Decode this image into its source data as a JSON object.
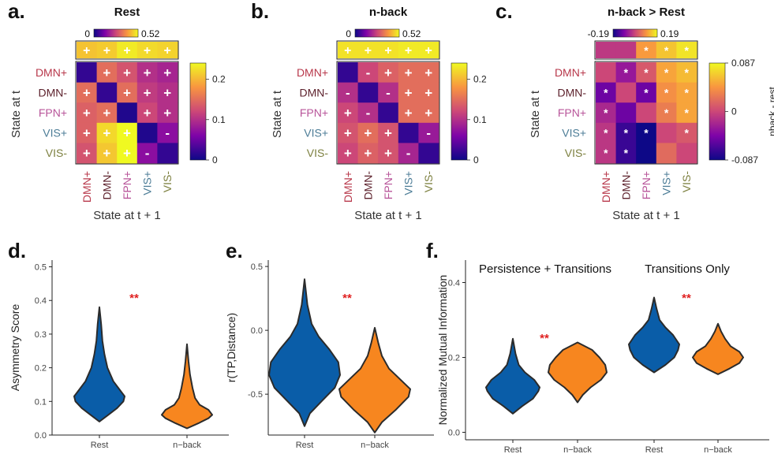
{
  "colors": {
    "blue": "#0a5da8",
    "orange": "#f7861f",
    "significance": "#e02020",
    "violin_edge": "#2b2b2b",
    "DMN+": "#b8384b",
    "DMN-": "#5b1f2a",
    "FPN+": "#b8559a",
    "VIS+": "#4d7d97",
    "VIS-": "#7d8040"
  },
  "chart_data": [
    {
      "type": "heatmap",
      "panel": "a.",
      "title": "Rest",
      "rows": [
        "DMN+",
        "DMN-",
        "FPN+",
        "VIS+",
        "VIS-"
      ],
      "cols": [
        "DMN+",
        "DMN-",
        "FPN+",
        "VIS+",
        "VIS-"
      ],
      "ylabel": "State at t",
      "xlabel": "State at t + 1",
      "values": [
        [
          0.02,
          0.15,
          0.13,
          0.1,
          0.09
        ],
        [
          0.15,
          0.02,
          0.15,
          0.11,
          0.1
        ],
        [
          0.14,
          0.15,
          0.01,
          0.12,
          0.1
        ],
        [
          0.14,
          0.22,
          0.24,
          0.01,
          0.07
        ],
        [
          0.13,
          0.21,
          0.24,
          0.07,
          0.02
        ]
      ],
      "signs": [
        [
          "",
          "+",
          "+",
          "+",
          "+"
        ],
        [
          "+",
          "",
          "+",
          "+",
          "+"
        ],
        [
          "+",
          "+",
          "",
          "+",
          "+"
        ],
        [
          "+",
          "+",
          "+",
          "",
          "-"
        ],
        [
          "+",
          "+",
          "+",
          "-",
          ""
        ]
      ],
      "persistence_values": [
        0.45,
        0.46,
        0.5,
        0.48,
        0.47
      ],
      "persistence_signs": [
        "+",
        "+",
        "+",
        "+",
        "+"
      ],
      "persistence_scale": {
        "min_label": "0",
        "max_label": "0.52",
        "min": 0,
        "max": 0.52
      },
      "colorbar": {
        "min": 0,
        "max": 0.24,
        "ticks": [
          0,
          0.1,
          0.2
        ],
        "tick_labels": [
          "0",
          "0.1",
          "0.2"
        ],
        "label": ""
      }
    },
    {
      "type": "heatmap",
      "panel": "b.",
      "title": "n-back",
      "rows": [
        "DMN+",
        "DMN-",
        "FPN+",
        "VIS+",
        "VIS-"
      ],
      "cols": [
        "DMN+",
        "DMN-",
        "FPN+",
        "VIS+",
        "VIS-"
      ],
      "ylabel": "State at t",
      "xlabel": "State at t + 1",
      "values": [
        [
          0.02,
          0.12,
          0.14,
          0.15,
          0.15
        ],
        [
          0.1,
          0.02,
          0.1,
          0.15,
          0.15
        ],
        [
          0.12,
          0.1,
          0.02,
          0.15,
          0.15
        ],
        [
          0.13,
          0.15,
          0.13,
          0.02,
          0.08
        ],
        [
          0.12,
          0.14,
          0.13,
          0.09,
          0.02
        ]
      ],
      "signs": [
        [
          "",
          "-",
          "+",
          "+",
          "+"
        ],
        [
          "-",
          "",
          "-",
          "+",
          "+"
        ],
        [
          "+",
          "-",
          "",
          "+",
          "+"
        ],
        [
          "+",
          "+",
          "+",
          "",
          "-"
        ],
        [
          "+",
          "+",
          "+",
          "-",
          ""
        ]
      ],
      "persistence_values": [
        0.49,
        0.49,
        0.49,
        0.5,
        0.5
      ],
      "persistence_signs": [
        "+",
        "+",
        "+",
        "+",
        "+"
      ],
      "persistence_scale": {
        "min_label": "0",
        "max_label": "0.52",
        "min": 0,
        "max": 0.52
      },
      "colorbar": {
        "min": 0,
        "max": 0.24,
        "ticks": [
          0,
          0.1,
          0.2
        ],
        "tick_labels": [
          "0",
          "0.1",
          "0.2"
        ],
        "label": ""
      }
    },
    {
      "type": "heatmap",
      "panel": "c.",
      "title": "n-back > Rest",
      "rows": [
        "DMN+",
        "DMN-",
        "FPN+",
        "VIS+",
        "VIS-"
      ],
      "cols": [
        "DMN+",
        "DMN-",
        "FPN+",
        "VIS+",
        "VIS-"
      ],
      "ylabel": "State at t",
      "xlabel": "State at t + 1",
      "values": [
        [
          0.0,
          -0.03,
          0.01,
          0.05,
          0.06
        ],
        [
          -0.05,
          0.0,
          -0.05,
          0.04,
          0.05
        ],
        [
          -0.02,
          -0.05,
          0.0,
          0.03,
          0.05
        ],
        [
          -0.01,
          -0.07,
          -0.11,
          0.0,
          0.01
        ],
        [
          -0.01,
          -0.07,
          -0.11,
          0.02,
          0.0
        ]
      ],
      "signs": [
        [
          "",
          "*",
          "*",
          "*",
          "*"
        ],
        [
          "*",
          "",
          "*",
          "*",
          "*"
        ],
        [
          "*",
          "",
          "",
          "*",
          "*"
        ],
        [
          "*",
          "*",
          "*",
          "",
          "*"
        ],
        [
          "*",
          "*",
          "",
          "",
          ""
        ]
      ],
      "persistence_values": [
        -0.02,
        -0.02,
        0.1,
        0.14,
        0.17
      ],
      "persistence_signs": [
        "",
        "",
        "*",
        "*",
        "*"
      ],
      "persistence_scale": {
        "min_label": "-0.19",
        "max_label": "0.19",
        "min": -0.19,
        "max": 0.19
      },
      "colorbar": {
        "min": -0.087,
        "max": 0.087,
        "ticks": [
          -0.087,
          0,
          0.087
        ],
        "tick_labels": [
          "-0.087",
          "0",
          "0.087"
        ],
        "label": "nback - rest"
      }
    },
    {
      "type": "violin",
      "panel": "d.",
      "ylabel": "Asymmetry Score",
      "ylim": [
        0,
        0.52
      ],
      "yticks": [
        0.0,
        0.1,
        0.2,
        0.3,
        0.4,
        0.5
      ],
      "ytick_labels": [
        "0.0",
        "0.1",
        "0.2",
        "0.3",
        "0.4",
        "0.5"
      ],
      "categories": [
        "Rest",
        "n−back"
      ],
      "significance": "**",
      "series": [
        {
          "category": "Rest",
          "color": "blue",
          "profile": [
            [
              0.04,
              0.0
            ],
            [
              0.06,
              0.35
            ],
            [
              0.08,
              0.7
            ],
            [
              0.1,
              0.95
            ],
            [
              0.115,
              1.0
            ],
            [
              0.13,
              0.85
            ],
            [
              0.16,
              0.55
            ],
            [
              0.2,
              0.32
            ],
            [
              0.24,
              0.2
            ],
            [
              0.28,
              0.12
            ],
            [
              0.33,
              0.07
            ],
            [
              0.38,
              0.0
            ]
          ]
        },
        {
          "category": "n−back",
          "color": "orange",
          "profile": [
            [
              0.02,
              0.0
            ],
            [
              0.035,
              0.45
            ],
            [
              0.05,
              0.85
            ],
            [
              0.06,
              1.0
            ],
            [
              0.075,
              0.85
            ],
            [
              0.09,
              0.5
            ],
            [
              0.11,
              0.32
            ],
            [
              0.14,
              0.22
            ],
            [
              0.18,
              0.12
            ],
            [
              0.22,
              0.06
            ],
            [
              0.27,
              0.0
            ]
          ]
        }
      ]
    },
    {
      "type": "violin",
      "panel": "e.",
      "ylabel": "r(TP,Distance)",
      "ylim": [
        -0.82,
        0.55
      ],
      "yticks": [
        -0.5,
        0.0,
        0.5
      ],
      "ytick_labels": [
        "-0.5",
        "0.0",
        "0.5"
      ],
      "categories": [
        "Rest",
        "n−back"
      ],
      "significance": "**",
      "series": [
        {
          "category": "Rest",
          "color": "blue",
          "profile": [
            [
              -0.75,
              0.0
            ],
            [
              -0.65,
              0.15
            ],
            [
              -0.55,
              0.5
            ],
            [
              -0.45,
              0.85
            ],
            [
              -0.35,
              1.0
            ],
            [
              -0.25,
              0.95
            ],
            [
              -0.15,
              0.7
            ],
            [
              -0.05,
              0.4
            ],
            [
              0.05,
              0.2
            ],
            [
              0.2,
              0.08
            ],
            [
              0.4,
              0.0
            ]
          ]
        },
        {
          "category": "n−back",
          "color": "orange",
          "profile": [
            [
              -0.8,
              0.0
            ],
            [
              -0.72,
              0.2
            ],
            [
              -0.62,
              0.6
            ],
            [
              -0.52,
              0.95
            ],
            [
              -0.46,
              1.0
            ],
            [
              -0.38,
              0.7
            ],
            [
              -0.3,
              0.4
            ],
            [
              -0.2,
              0.2
            ],
            [
              -0.1,
              0.1
            ],
            [
              0.02,
              0.0
            ]
          ]
        }
      ]
    },
    {
      "type": "violin",
      "panel": "f.",
      "ylabel": "Normalized Mutual Information",
      "ylim": [
        -0.02,
        0.46
      ],
      "yticks": [
        0.0,
        0.2,
        0.4
      ],
      "ytick_labels": [
        "0.0",
        "0.2",
        "0.4"
      ],
      "categories": [
        "Rest",
        "n−back",
        "Rest",
        "n−back"
      ],
      "groups": [
        "Persistence + Transitions",
        "Transitions Only"
      ],
      "significance": [
        "**",
        "**"
      ],
      "series": [
        {
          "category": "Rest",
          "group": "Persistence + Transitions",
          "color": "blue",
          "profile": [
            [
              0.05,
              0.0
            ],
            [
              0.07,
              0.35
            ],
            [
              0.09,
              0.75
            ],
            [
              0.11,
              0.95
            ],
            [
              0.12,
              1.0
            ],
            [
              0.14,
              0.8
            ],
            [
              0.16,
              0.45
            ],
            [
              0.18,
              0.22
            ],
            [
              0.21,
              0.1
            ],
            [
              0.25,
              0.0
            ]
          ]
        },
        {
          "category": "n−back",
          "group": "Persistence + Transitions",
          "color": "orange",
          "profile": [
            [
              0.08,
              0.0
            ],
            [
              0.1,
              0.18
            ],
            [
              0.12,
              0.45
            ],
            [
              0.14,
              0.8
            ],
            [
              0.16,
              1.0
            ],
            [
              0.18,
              0.95
            ],
            [
              0.2,
              0.75
            ],
            [
              0.22,
              0.5
            ],
            [
              0.24,
              0.0
            ]
          ]
        },
        {
          "category": "Rest",
          "group": "Transitions Only",
          "color": "blue",
          "profile": [
            [
              0.16,
              0.0
            ],
            [
              0.18,
              0.45
            ],
            [
              0.2,
              0.8
            ],
            [
              0.22,
              0.95
            ],
            [
              0.235,
              1.0
            ],
            [
              0.26,
              0.75
            ],
            [
              0.28,
              0.45
            ],
            [
              0.3,
              0.22
            ],
            [
              0.33,
              0.1
            ],
            [
              0.36,
              0.0
            ]
          ]
        },
        {
          "category": "n−back",
          "group": "Transitions Only",
          "color": "orange",
          "profile": [
            [
              0.155,
              0.0
            ],
            [
              0.17,
              0.45
            ],
            [
              0.185,
              0.85
            ],
            [
              0.2,
              1.0
            ],
            [
              0.215,
              0.85
            ],
            [
              0.23,
              0.5
            ],
            [
              0.25,
              0.28
            ],
            [
              0.27,
              0.12
            ],
            [
              0.29,
              0.0
            ]
          ]
        }
      ]
    }
  ]
}
